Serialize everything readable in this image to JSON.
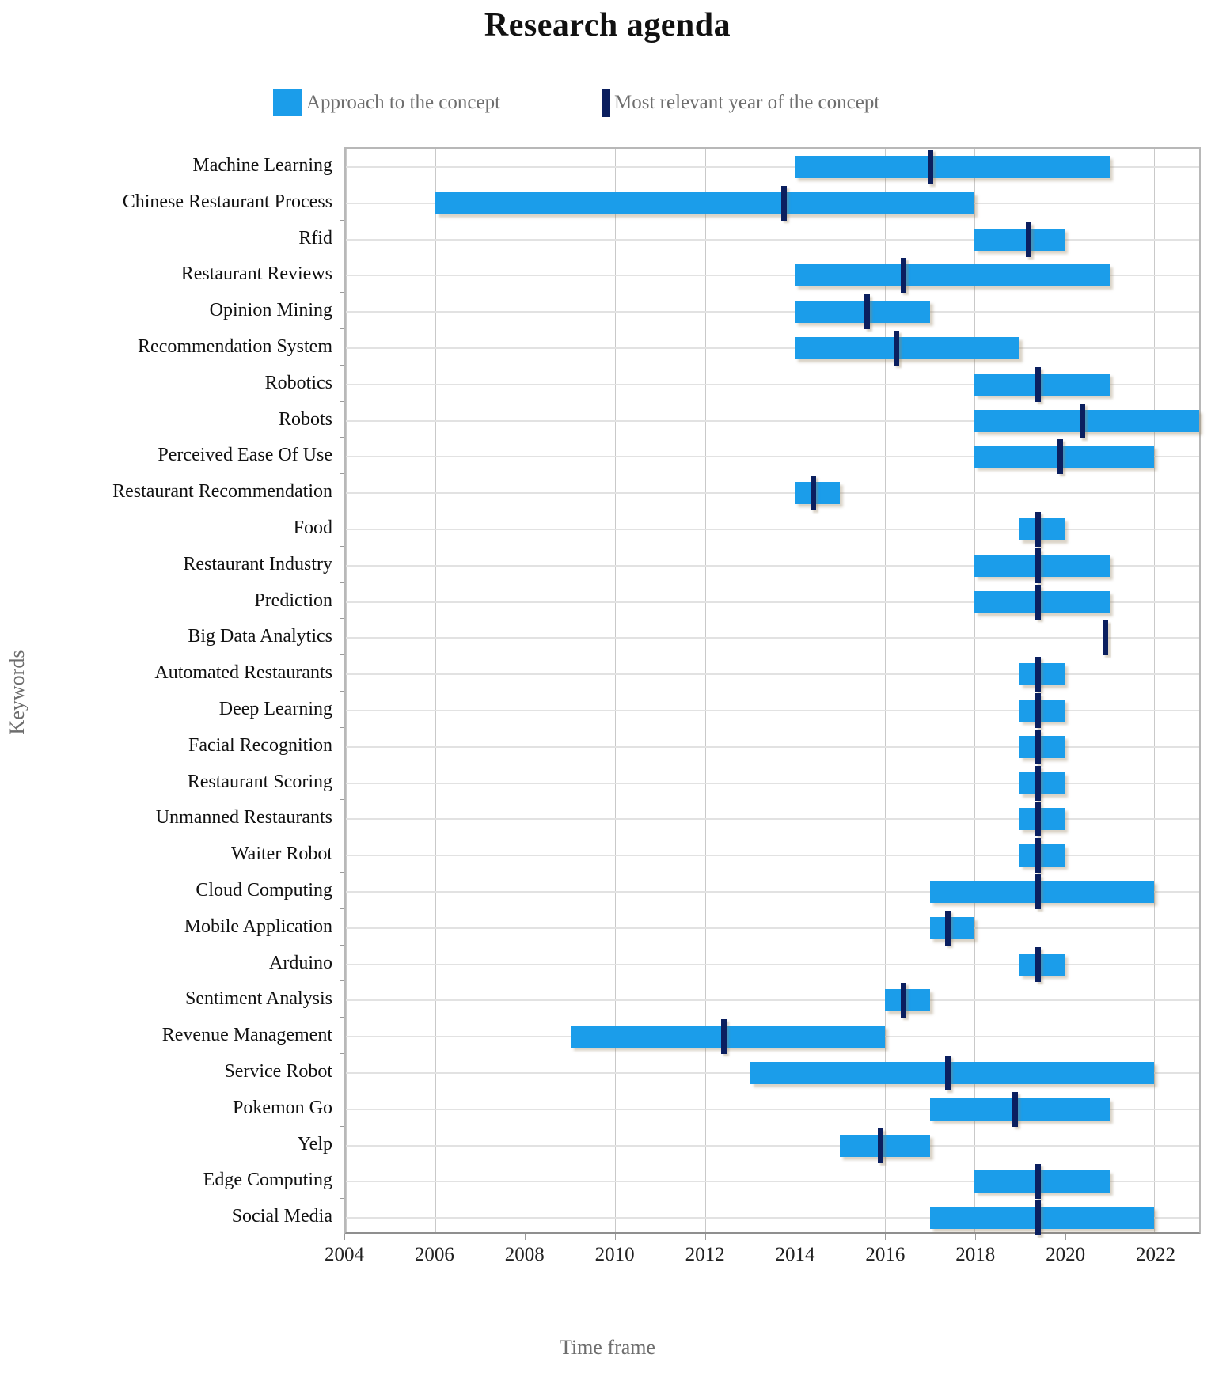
{
  "title": "Research agenda",
  "legend": {
    "approach_label": "Approach to the concept",
    "relevant_label": "Most relevant year of the concept"
  },
  "colors": {
    "bar": "#1b9dea",
    "marker": "#0b1f5f",
    "gridline": "#c9c9c9",
    "frame": "#b8b8b8"
  },
  "chart_data": {
    "type": "bar",
    "subtype": "gantt",
    "title": "Research agenda",
    "xlabel": "Time frame",
    "ylabel": "Keywords",
    "x_domain": [
      2004,
      2023
    ],
    "x_ticks": [
      2004,
      2006,
      2008,
      2010,
      2012,
      2014,
      2016,
      2018,
      2020,
      2022
    ],
    "grid": "on",
    "legend_position": "top",
    "series_meta": {
      "bar_series": "Approach to the concept",
      "marker_series": "Most relevant year of the concept"
    },
    "rows": [
      {
        "keyword": "Machine Learning",
        "start": 2014,
        "end": 2021,
        "most_relevant_year": 2017.0
      },
      {
        "keyword": "Chinese Restaurant Process",
        "start": 2006,
        "end": 2018,
        "most_relevant_year": 2013.75
      },
      {
        "keyword": "Rfid",
        "start": 2018,
        "end": 2020,
        "most_relevant_year": 2019.2
      },
      {
        "keyword": "Restaurant Reviews",
        "start": 2014,
        "end": 2021,
        "most_relevant_year": 2016.4
      },
      {
        "keyword": "Opinion Mining",
        "start": 2014,
        "end": 2017,
        "most_relevant_year": 2015.6
      },
      {
        "keyword": "Recommendation System",
        "start": 2014,
        "end": 2019,
        "most_relevant_year": 2016.25
      },
      {
        "keyword": "Robotics",
        "start": 2018,
        "end": 2021,
        "most_relevant_year": 2019.4
      },
      {
        "keyword": "Robots",
        "start": 2018,
        "end": 2023,
        "most_relevant_year": 2020.4
      },
      {
        "keyword": "Perceived Ease Of Use",
        "start": 2018,
        "end": 2022,
        "most_relevant_year": 2019.9
      },
      {
        "keyword": "Restaurant Recommendation",
        "start": 2014,
        "end": 2015,
        "most_relevant_year": 2014.4
      },
      {
        "keyword": "Food",
        "start": 2019,
        "end": 2020,
        "most_relevant_year": 2019.4
      },
      {
        "keyword": "Restaurant Industry",
        "start": 2018,
        "end": 2021,
        "most_relevant_year": 2019.4
      },
      {
        "keyword": "Prediction",
        "start": 2018,
        "end": 2021,
        "most_relevant_year": 2019.4
      },
      {
        "keyword": "Big Data Analytics",
        "start": 2020.9,
        "end": 2020.9,
        "most_relevant_year": 2020.9
      },
      {
        "keyword": "Automated Restaurants",
        "start": 2019,
        "end": 2020,
        "most_relevant_year": 2019.4
      },
      {
        "keyword": "Deep Learning",
        "start": 2019,
        "end": 2020,
        "most_relevant_year": 2019.4
      },
      {
        "keyword": "Facial Recognition",
        "start": 2019,
        "end": 2020,
        "most_relevant_year": 2019.4
      },
      {
        "keyword": "Restaurant Scoring",
        "start": 2019,
        "end": 2020,
        "most_relevant_year": 2019.4
      },
      {
        "keyword": "Unmanned Restaurants",
        "start": 2019,
        "end": 2020,
        "most_relevant_year": 2019.4
      },
      {
        "keyword": "Waiter Robot",
        "start": 2019,
        "end": 2020,
        "most_relevant_year": 2019.4
      },
      {
        "keyword": "Cloud Computing",
        "start": 2017,
        "end": 2022,
        "most_relevant_year": 2019.4
      },
      {
        "keyword": "Mobile Application",
        "start": 2017,
        "end": 2018,
        "most_relevant_year": 2017.4
      },
      {
        "keyword": "Arduino",
        "start": 2019,
        "end": 2020,
        "most_relevant_year": 2019.4
      },
      {
        "keyword": "Sentiment Analysis",
        "start": 2016,
        "end": 2017,
        "most_relevant_year": 2016.4
      },
      {
        "keyword": "Revenue Management",
        "start": 2009,
        "end": 2016,
        "most_relevant_year": 2012.4
      },
      {
        "keyword": "Service Robot",
        "start": 2013,
        "end": 2022,
        "most_relevant_year": 2017.4
      },
      {
        "keyword": "Pokemon Go",
        "start": 2017,
        "end": 2021,
        "most_relevant_year": 2018.9
      },
      {
        "keyword": "Yelp",
        "start": 2015,
        "end": 2017,
        "most_relevant_year": 2015.9
      },
      {
        "keyword": "Edge Computing",
        "start": 2018,
        "end": 2021,
        "most_relevant_year": 2019.4
      },
      {
        "keyword": "Social Media",
        "start": 2017,
        "end": 2022,
        "most_relevant_year": 2019.4
      }
    ]
  }
}
